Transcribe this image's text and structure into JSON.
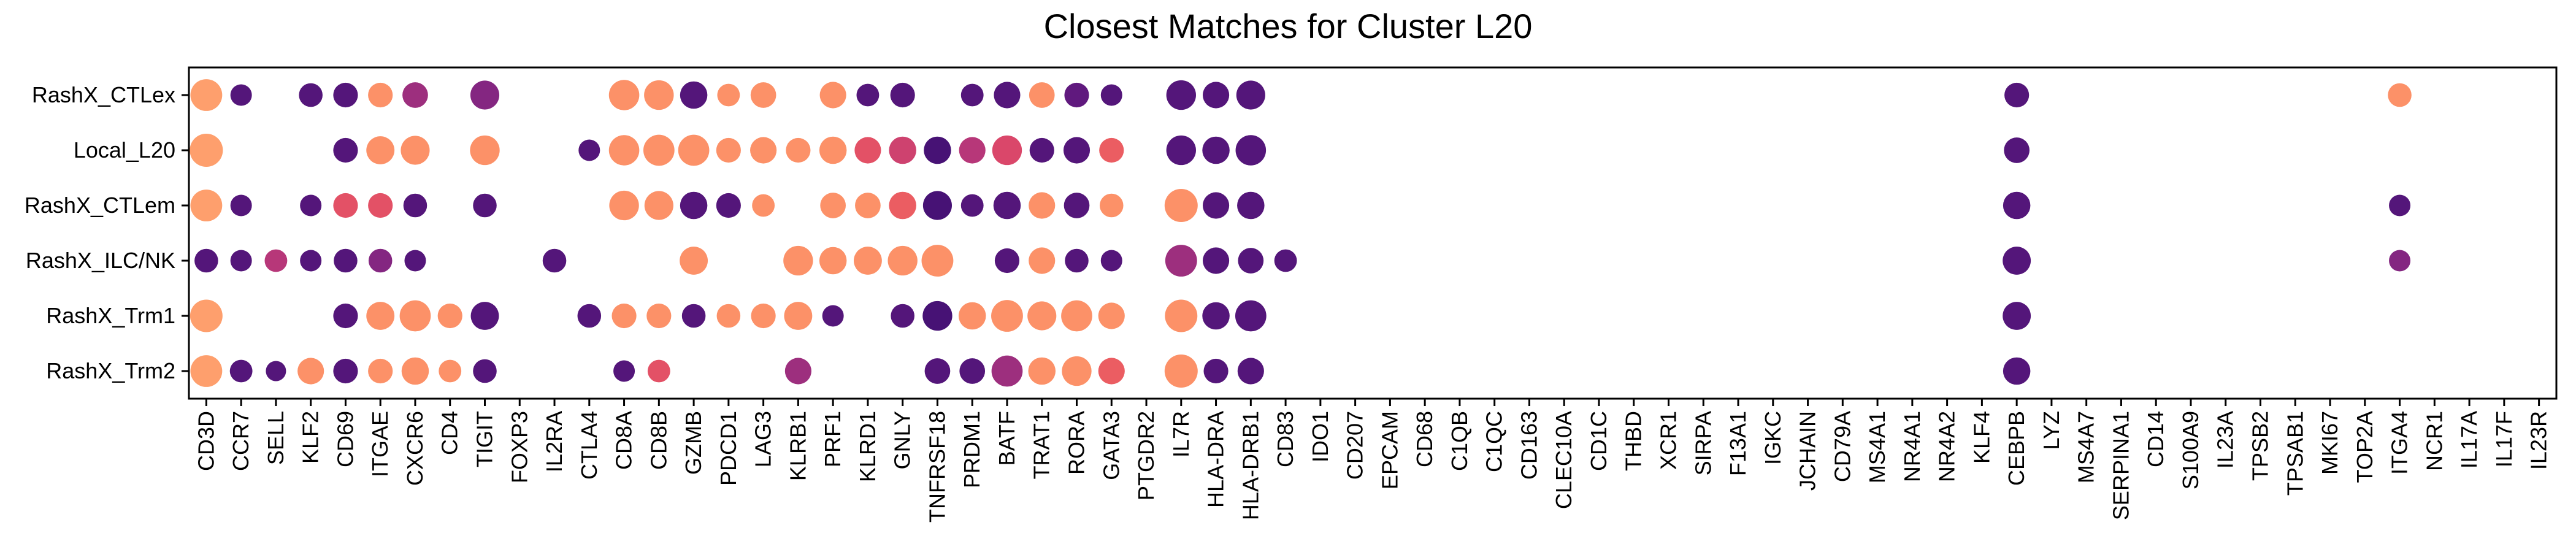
{
  "chart_data": {
    "type": "dot-plot",
    "title": "Closest Matches for Cluster L20",
    "xlabel": "",
    "ylabel": "",
    "grid": false,
    "legend": "none",
    "rows": [
      "RashX_CTLex",
      "Local_L20",
      "RashX_CTLem",
      "RashX_ILC/NK",
      "RashX_Trm1",
      "RashX_Trm2"
    ],
    "genes": [
      "CD3D",
      "CCR7",
      "SELL",
      "KLF2",
      "CD69",
      "ITGAE",
      "CXCR6",
      "CD4",
      "TIGIT",
      "FOXP3",
      "IL2RA",
      "CTLA4",
      "CD8A",
      "CD8B",
      "GZMB",
      "PDCD1",
      "LAG3",
      "KLRB1",
      "PRF1",
      "KLRD1",
      "GNLY",
      "TNFRSF18",
      "PRDM1",
      "BATF",
      "TRAT1",
      "RORA",
      "GATA3",
      "PTGDR2",
      "IL7R",
      "HLA-DRA",
      "HLA-DRB1",
      "CD83",
      "IDO1",
      "CD207",
      "EPCAM",
      "CD68",
      "C1QB",
      "C1QC",
      "CD163",
      "CLEC10A",
      "CD1C",
      "THBD",
      "XCR1",
      "SIRPA",
      "F13A1",
      "IGKC",
      "JCHAIN",
      "CD79A",
      "MS4A1",
      "NR4A1",
      "NR4A2",
      "KLF4",
      "CEBPB",
      "LYZ",
      "MS4A7",
      "SERPINA1",
      "CD14",
      "S100A9",
      "IL23A",
      "TPSB2",
      "TPSAB1",
      "MKI67",
      "TOP2A",
      "ITGA4",
      "NCR1",
      "IL17A",
      "IL17F",
      "IL23R"
    ],
    "size_scale": "fraction of cells expressing (0-1)",
    "color_scale": {
      "name": "magma",
      "stops": [
        "#3b0f70",
        "#641a80",
        "#8c2981",
        "#b73779",
        "#de4968",
        "#f7705c",
        "#fe9f6d"
      ],
      "meaning": "mean expression (0-1)"
    },
    "points": [
      {
        "row": "RashX_CTLex",
        "gene": "CD3D",
        "size": 0.9,
        "color": 1.0
      },
      {
        "row": "RashX_CTLex",
        "gene": "CCR7",
        "size": 0.3,
        "color": 0.1
      },
      {
        "row": "RashX_CTLex",
        "gene": "KLF2",
        "size": 0.4,
        "color": 0.1
      },
      {
        "row": "RashX_CTLex",
        "gene": "CD69",
        "size": 0.45,
        "color": 0.1
      },
      {
        "row": "RashX_CTLex",
        "gene": "ITGAE",
        "size": 0.45,
        "color": 0.95
      },
      {
        "row": "RashX_CTLex",
        "gene": "CXCR6",
        "size": 0.5,
        "color": 0.4
      },
      {
        "row": "RashX_CTLex",
        "gene": "TIGIT",
        "size": 0.7,
        "color": 0.3
      },
      {
        "row": "RashX_CTLex",
        "gene": "CD8A",
        "size": 0.8,
        "color": 0.95
      },
      {
        "row": "RashX_CTLex",
        "gene": "CD8B",
        "size": 0.75,
        "color": 0.95
      },
      {
        "row": "RashX_CTLex",
        "gene": "GZMB",
        "size": 0.6,
        "color": 0.1
      },
      {
        "row": "RashX_CTLex",
        "gene": "PDCD1",
        "size": 0.35,
        "color": 0.95
      },
      {
        "row": "RashX_CTLex",
        "gene": "LAG3",
        "size": 0.5,
        "color": 0.95
      },
      {
        "row": "RashX_CTLex",
        "gene": "PRF1",
        "size": 0.55,
        "color": 0.95
      },
      {
        "row": "RashX_CTLex",
        "gene": "KLRD1",
        "size": 0.35,
        "color": 0.1
      },
      {
        "row": "RashX_CTLex",
        "gene": "GNLY",
        "size": 0.45,
        "color": 0.1
      },
      {
        "row": "RashX_CTLex",
        "gene": "PRDM1",
        "size": 0.35,
        "color": 0.1
      },
      {
        "row": "RashX_CTLex",
        "gene": "BATF",
        "size": 0.55,
        "color": 0.1
      },
      {
        "row": "RashX_CTLex",
        "gene": "TRAT1",
        "size": 0.5,
        "color": 0.95
      },
      {
        "row": "RashX_CTLex",
        "gene": "RORA",
        "size": 0.45,
        "color": 0.15
      },
      {
        "row": "RashX_CTLex",
        "gene": "GATA3",
        "size": 0.3,
        "color": 0.1
      },
      {
        "row": "RashX_CTLex",
        "gene": "IL7R",
        "size": 0.75,
        "color": 0.1
      },
      {
        "row": "RashX_CTLex",
        "gene": "HLA-DRA",
        "size": 0.55,
        "color": 0.1
      },
      {
        "row": "RashX_CTLex",
        "gene": "HLA-DRB1",
        "size": 0.7,
        "color": 0.1
      },
      {
        "row": "RashX_CTLex",
        "gene": "CEBPB",
        "size": 0.45,
        "color": 0.1
      },
      {
        "row": "RashX_CTLex",
        "gene": "ITGA4",
        "size": 0.4,
        "color": 0.95
      },
      {
        "row": "Local_L20",
        "gene": "CD3D",
        "size": 1.0,
        "color": 1.0
      },
      {
        "row": "Local_L20",
        "gene": "CD69",
        "size": 0.45,
        "color": 0.1
      },
      {
        "row": "Local_L20",
        "gene": "ITGAE",
        "size": 0.65,
        "color": 0.95
      },
      {
        "row": "Local_L20",
        "gene": "CXCR6",
        "size": 0.7,
        "color": 0.95
      },
      {
        "row": "Local_L20",
        "gene": "TIGIT",
        "size": 0.75,
        "color": 0.95
      },
      {
        "row": "Local_L20",
        "gene": "CTLA4",
        "size": 0.3,
        "color": 0.1
      },
      {
        "row": "Local_L20",
        "gene": "CD8A",
        "size": 0.8,
        "color": 0.95
      },
      {
        "row": "Local_L20",
        "gene": "CD8B",
        "size": 0.85,
        "color": 0.95
      },
      {
        "row": "Local_L20",
        "gene": "GZMB",
        "size": 0.85,
        "color": 0.95
      },
      {
        "row": "Local_L20",
        "gene": "PDCD1",
        "size": 0.45,
        "color": 0.95
      },
      {
        "row": "Local_L20",
        "gene": "LAG3",
        "size": 0.55,
        "color": 0.95
      },
      {
        "row": "Local_L20",
        "gene": "KLRB1",
        "size": 0.45,
        "color": 0.95
      },
      {
        "row": "Local_L20",
        "gene": "PRF1",
        "size": 0.6,
        "color": 0.95
      },
      {
        "row": "Local_L20",
        "gene": "KLRD1",
        "size": 0.55,
        "color": 0.7
      },
      {
        "row": "Local_L20",
        "gene": "GNLY",
        "size": 0.6,
        "color": 0.6
      },
      {
        "row": "Local_L20",
        "gene": "TNFRSF18",
        "size": 0.6,
        "color": 0.05
      },
      {
        "row": "Local_L20",
        "gene": "PRDM1",
        "size": 0.55,
        "color": 0.5
      },
      {
        "row": "Local_L20",
        "gene": "BATF",
        "size": 0.75,
        "color": 0.65
      },
      {
        "row": "Local_L20",
        "gene": "TRAT1",
        "size": 0.45,
        "color": 0.1
      },
      {
        "row": "Local_L20",
        "gene": "RORA",
        "size": 0.55,
        "color": 0.1
      },
      {
        "row": "Local_L20",
        "gene": "GATA3",
        "size": 0.45,
        "color": 0.75
      },
      {
        "row": "Local_L20",
        "gene": "IL7R",
        "size": 0.75,
        "color": 0.1
      },
      {
        "row": "Local_L20",
        "gene": "HLA-DRA",
        "size": 0.6,
        "color": 0.1
      },
      {
        "row": "Local_L20",
        "gene": "HLA-DRB1",
        "size": 0.8,
        "color": 0.1
      },
      {
        "row": "Local_L20",
        "gene": "CEBPB",
        "size": 0.5,
        "color": 0.1
      },
      {
        "row": "RashX_CTLem",
        "gene": "CD3D",
        "size": 0.9,
        "color": 1.0
      },
      {
        "row": "RashX_CTLem",
        "gene": "CCR7",
        "size": 0.3,
        "color": 0.1
      },
      {
        "row": "RashX_CTLem",
        "gene": "KLF2",
        "size": 0.3,
        "color": 0.1
      },
      {
        "row": "RashX_CTLem",
        "gene": "CD69",
        "size": 0.45,
        "color": 0.7
      },
      {
        "row": "RashX_CTLem",
        "gene": "ITGAE",
        "size": 0.45,
        "color": 0.7
      },
      {
        "row": "RashX_CTLem",
        "gene": "CXCR6",
        "size": 0.4,
        "color": 0.1
      },
      {
        "row": "RashX_CTLem",
        "gene": "TIGIT",
        "size": 0.4,
        "color": 0.1
      },
      {
        "row": "RashX_CTLem",
        "gene": "CD8A",
        "size": 0.75,
        "color": 0.95
      },
      {
        "row": "RashX_CTLem",
        "gene": "CD8B",
        "size": 0.7,
        "color": 0.95
      },
      {
        "row": "RashX_CTLem",
        "gene": "GZMB",
        "size": 0.6,
        "color": 0.1
      },
      {
        "row": "RashX_CTLem",
        "gene": "PDCD1",
        "size": 0.45,
        "color": 0.1
      },
      {
        "row": "RashX_CTLem",
        "gene": "LAG3",
        "size": 0.35,
        "color": 0.95
      },
      {
        "row": "RashX_CTLem",
        "gene": "PRF1",
        "size": 0.5,
        "color": 0.95
      },
      {
        "row": "RashX_CTLem",
        "gene": "KLRD1",
        "size": 0.5,
        "color": 0.95
      },
      {
        "row": "RashX_CTLem",
        "gene": "GNLY",
        "size": 0.6,
        "color": 0.75
      },
      {
        "row": "RashX_CTLem",
        "gene": "TNFRSF18",
        "size": 0.7,
        "color": 0.05
      },
      {
        "row": "RashX_CTLem",
        "gene": "PRDM1",
        "size": 0.35,
        "color": 0.1
      },
      {
        "row": "RashX_CTLem",
        "gene": "BATF",
        "size": 0.6,
        "color": 0.1
      },
      {
        "row": "RashX_CTLem",
        "gene": "TRAT1",
        "size": 0.55,
        "color": 0.95
      },
      {
        "row": "RashX_CTLem",
        "gene": "RORA",
        "size": 0.5,
        "color": 0.1
      },
      {
        "row": "RashX_CTLem",
        "gene": "GATA3",
        "size": 0.4,
        "color": 0.95
      },
      {
        "row": "RashX_CTLem",
        "gene": "IL7R",
        "size": 1.0,
        "color": 0.95
      },
      {
        "row": "RashX_CTLem",
        "gene": "HLA-DRA",
        "size": 0.55,
        "color": 0.1
      },
      {
        "row": "RashX_CTLem",
        "gene": "HLA-DRB1",
        "size": 0.6,
        "color": 0.1
      },
      {
        "row": "RashX_CTLem",
        "gene": "CEBPB",
        "size": 0.6,
        "color": 0.1
      },
      {
        "row": "RashX_CTLem",
        "gene": "ITGA4",
        "size": 0.3,
        "color": 0.1
      },
      {
        "row": "RashX_ILC/NK",
        "gene": "CD3D",
        "size": 0.4,
        "color": 0.1
      },
      {
        "row": "RashX_ILC/NK",
        "gene": "CCR7",
        "size": 0.3,
        "color": 0.1
      },
      {
        "row": "RashX_ILC/NK",
        "gene": "SELL",
        "size": 0.35,
        "color": 0.5
      },
      {
        "row": "RashX_ILC/NK",
        "gene": "KLF2",
        "size": 0.3,
        "color": 0.1
      },
      {
        "row": "RashX_ILC/NK",
        "gene": "CD69",
        "size": 0.4,
        "color": 0.1
      },
      {
        "row": "RashX_ILC/NK",
        "gene": "ITGAE",
        "size": 0.4,
        "color": 0.3
      },
      {
        "row": "RashX_ILC/NK",
        "gene": "CXCR6",
        "size": 0.3,
        "color": 0.1
      },
      {
        "row": "RashX_ILC/NK",
        "gene": "IL2RA",
        "size": 0.4,
        "color": 0.1
      },
      {
        "row": "RashX_ILC/NK",
        "gene": "GZMB",
        "size": 0.65,
        "color": 0.95
      },
      {
        "row": "RashX_ILC/NK",
        "gene": "KLRB1",
        "size": 0.75,
        "color": 0.95
      },
      {
        "row": "RashX_ILC/NK",
        "gene": "PRF1",
        "size": 0.6,
        "color": 0.95
      },
      {
        "row": "RashX_ILC/NK",
        "gene": "KLRD1",
        "size": 0.65,
        "color": 0.95
      },
      {
        "row": "RashX_ILC/NK",
        "gene": "GNLY",
        "size": 0.75,
        "color": 0.95
      },
      {
        "row": "RashX_ILC/NK",
        "gene": "TNFRSF18",
        "size": 0.9,
        "color": 0.95
      },
      {
        "row": "RashX_ILC/NK",
        "gene": "BATF",
        "size": 0.45,
        "color": 0.1
      },
      {
        "row": "RashX_ILC/NK",
        "gene": "TRAT1",
        "size": 0.55,
        "color": 0.95
      },
      {
        "row": "RashX_ILC/NK",
        "gene": "RORA",
        "size": 0.4,
        "color": 0.1
      },
      {
        "row": "RashX_ILC/NK",
        "gene": "GATA3",
        "size": 0.3,
        "color": 0.1
      },
      {
        "row": "RashX_ILC/NK",
        "gene": "IL7R",
        "size": 0.9,
        "color": 0.4
      },
      {
        "row": "RashX_ILC/NK",
        "gene": "HLA-DRA",
        "size": 0.55,
        "color": 0.1
      },
      {
        "row": "RashX_ILC/NK",
        "gene": "HLA-DRB1",
        "size": 0.5,
        "color": 0.1
      },
      {
        "row": "RashX_ILC/NK",
        "gene": "CD83",
        "size": 0.35,
        "color": 0.1
      },
      {
        "row": "RashX_ILC/NK",
        "gene": "CEBPB",
        "size": 0.65,
        "color": 0.1
      },
      {
        "row": "RashX_ILC/NK",
        "gene": "ITGA4",
        "size": 0.3,
        "color": 0.3
      },
      {
        "row": "RashX_Trm1",
        "gene": "CD3D",
        "size": 0.95,
        "color": 1.0
      },
      {
        "row": "RashX_Trm1",
        "gene": "CD69",
        "size": 0.45,
        "color": 0.1
      },
      {
        "row": "RashX_Trm1",
        "gene": "ITGAE",
        "size": 0.65,
        "color": 0.95
      },
      {
        "row": "RashX_Trm1",
        "gene": "CXCR6",
        "size": 0.85,
        "color": 0.95
      },
      {
        "row": "RashX_Trm1",
        "gene": "CD4",
        "size": 0.45,
        "color": 0.95
      },
      {
        "row": "RashX_Trm1",
        "gene": "TIGIT",
        "size": 0.65,
        "color": 0.1
      },
      {
        "row": "RashX_Trm1",
        "gene": "CTLA4",
        "size": 0.4,
        "color": 0.1
      },
      {
        "row": "RashX_Trm1",
        "gene": "CD8A",
        "size": 0.45,
        "color": 0.95
      },
      {
        "row": "RashX_Trm1",
        "gene": "CD8B",
        "size": 0.45,
        "color": 0.95
      },
      {
        "row": "RashX_Trm1",
        "gene": "GZMB",
        "size": 0.4,
        "color": 0.1
      },
      {
        "row": "RashX_Trm1",
        "gene": "PDCD1",
        "size": 0.4,
        "color": 0.95
      },
      {
        "row": "RashX_Trm1",
        "gene": "LAG3",
        "size": 0.45,
        "color": 0.95
      },
      {
        "row": "RashX_Trm1",
        "gene": "KLRB1",
        "size": 0.65,
        "color": 0.95
      },
      {
        "row": "RashX_Trm1",
        "gene": "PRF1",
        "size": 0.3,
        "color": 0.1
      },
      {
        "row": "RashX_Trm1",
        "gene": "GNLY",
        "size": 0.4,
        "color": 0.1
      },
      {
        "row": "RashX_Trm1",
        "gene": "TNFRSF18",
        "size": 0.75,
        "color": 0.05
      },
      {
        "row": "RashX_Trm1",
        "gene": "PRDM1",
        "size": 0.6,
        "color": 0.95
      },
      {
        "row": "RashX_Trm1",
        "gene": "BATF",
        "size": 0.9,
        "color": 0.95
      },
      {
        "row": "RashX_Trm1",
        "gene": "TRAT1",
        "size": 0.7,
        "color": 0.95
      },
      {
        "row": "RashX_Trm1",
        "gene": "RORA",
        "size": 0.85,
        "color": 0.95
      },
      {
        "row": "RashX_Trm1",
        "gene": "GATA3",
        "size": 0.55,
        "color": 0.95
      },
      {
        "row": "RashX_Trm1",
        "gene": "IL7R",
        "size": 0.95,
        "color": 0.95
      },
      {
        "row": "RashX_Trm1",
        "gene": "HLA-DRA",
        "size": 0.6,
        "color": 0.1
      },
      {
        "row": "RashX_Trm1",
        "gene": "HLA-DRB1",
        "size": 0.85,
        "color": 0.1
      },
      {
        "row": "RashX_Trm1",
        "gene": "CEBPB",
        "size": 0.65,
        "color": 0.1
      },
      {
        "row": "RashX_Trm2",
        "gene": "CD3D",
        "size": 0.9,
        "color": 1.0
      },
      {
        "row": "RashX_Trm2",
        "gene": "CCR7",
        "size": 0.35,
        "color": 0.1
      },
      {
        "row": "RashX_Trm2",
        "gene": "SELL",
        "size": 0.25,
        "color": 0.1
      },
      {
        "row": "RashX_Trm2",
        "gene": "KLF2",
        "size": 0.55,
        "color": 0.95
      },
      {
        "row": "RashX_Trm2",
        "gene": "CD69",
        "size": 0.45,
        "color": 0.1
      },
      {
        "row": "RashX_Trm2",
        "gene": "ITGAE",
        "size": 0.45,
        "color": 0.95
      },
      {
        "row": "RashX_Trm2",
        "gene": "CXCR6",
        "size": 0.6,
        "color": 0.95
      },
      {
        "row": "RashX_Trm2",
        "gene": "CD4",
        "size": 0.35,
        "color": 0.95
      },
      {
        "row": "RashX_Trm2",
        "gene": "TIGIT",
        "size": 0.4,
        "color": 0.1
      },
      {
        "row": "RashX_Trm2",
        "gene": "CD8A",
        "size": 0.3,
        "color": 0.1
      },
      {
        "row": "RashX_Trm2",
        "gene": "CD8B",
        "size": 0.35,
        "color": 0.7
      },
      {
        "row": "RashX_Trm2",
        "gene": "KLRB1",
        "size": 0.55,
        "color": 0.4
      },
      {
        "row": "RashX_Trm2",
        "gene": "TNFRSF18",
        "size": 0.5,
        "color": 0.1
      },
      {
        "row": "RashX_Trm2",
        "gene": "PRDM1",
        "size": 0.5,
        "color": 0.1
      },
      {
        "row": "RashX_Trm2",
        "gene": "BATF",
        "size": 0.85,
        "color": 0.4
      },
      {
        "row": "RashX_Trm2",
        "gene": "TRAT1",
        "size": 0.6,
        "color": 0.95
      },
      {
        "row": "RashX_Trm2",
        "gene": "RORA",
        "size": 0.75,
        "color": 0.95
      },
      {
        "row": "RashX_Trm2",
        "gene": "GATA3",
        "size": 0.55,
        "color": 0.75
      },
      {
        "row": "RashX_Trm2",
        "gene": "IL7R",
        "size": 1.0,
        "color": 0.95
      },
      {
        "row": "RashX_Trm2",
        "gene": "HLA-DRA",
        "size": 0.45,
        "color": 0.1
      },
      {
        "row": "RashX_Trm2",
        "gene": "HLA-DRB1",
        "size": 0.55,
        "color": 0.1
      },
      {
        "row": "RashX_Trm2",
        "gene": "CEBPB",
        "size": 0.6,
        "color": 0.1
      }
    ]
  }
}
